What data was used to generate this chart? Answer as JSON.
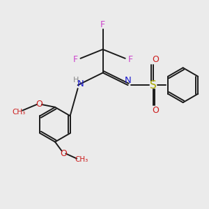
{
  "bg_color": "#ebebeb",
  "bond_color": "#1a1a1a",
  "N_color": "#1a1acc",
  "O_color": "#cc1a1a",
  "F_color": "#cc44cc",
  "S_color": "#aaaa00",
  "H_color": "#888888",
  "lw": 1.4,
  "dbl_off": 0.05,
  "xlim": [
    -3.0,
    3.2
  ],
  "ylim": [
    -2.8,
    2.4
  ]
}
